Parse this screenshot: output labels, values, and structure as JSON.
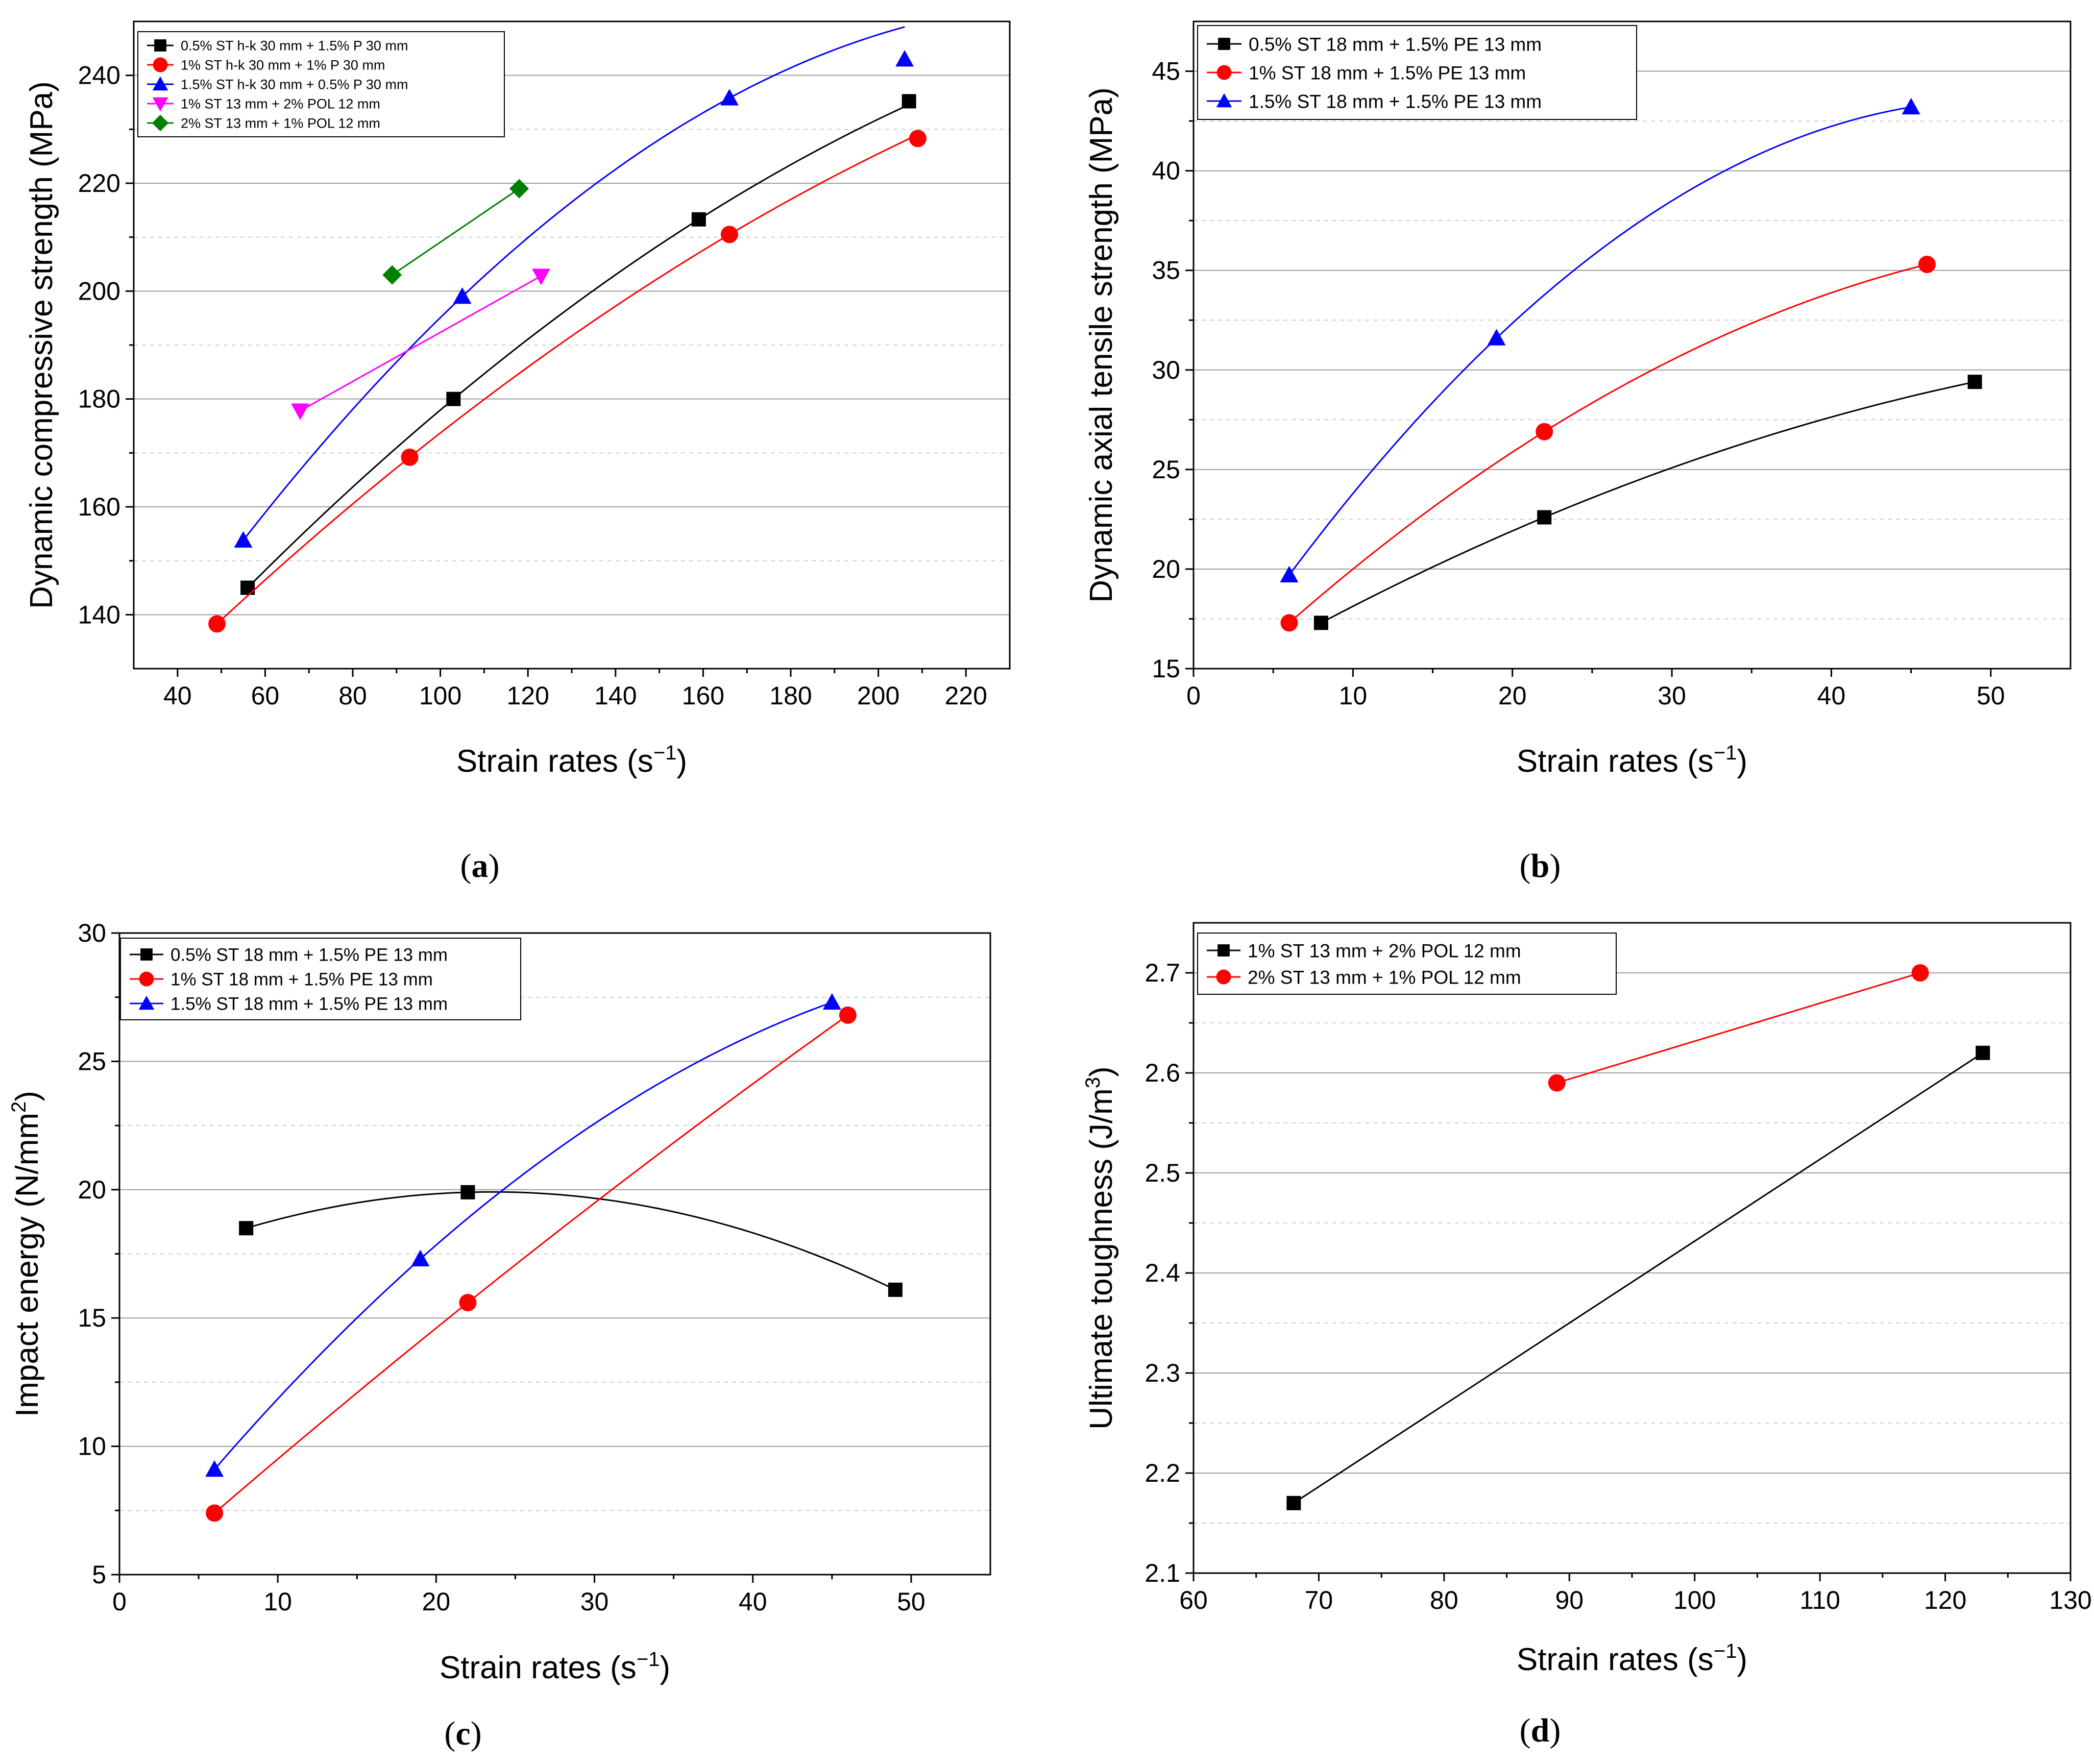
{
  "chart_data": [
    {
      "type": "scatter",
      "panel_label": "a",
      "xlabel": "Strain rates (s",
      "xlabel_sup": "−1",
      "xlabel_tail": ")",
      "ylabel": "Dynamic compressive strength (MPa)",
      "xlim": [
        30,
        230
      ],
      "ylim": [
        130,
        250
      ],
      "xticks": [
        40,
        60,
        80,
        100,
        120,
        140,
        160,
        180,
        200,
        220
      ],
      "yticks": [
        140,
        160,
        180,
        200,
        220,
        240
      ],
      "legend_position": "top-left",
      "series": [
        {
          "name": "0.5% ST h-k 30 mm + 1.5% P 30 mm",
          "color": "#000000",
          "marker": "square",
          "x": [
            56,
            103,
            159,
            207
          ],
          "y": [
            145,
            180,
            213.3,
            235.2
          ],
          "fit": "quadratic"
        },
        {
          "name": "1% ST h-k 30 mm + 1% P 30 mm",
          "color": "#ff0000",
          "marker": "circle",
          "x": [
            49,
            93,
            166,
            209
          ],
          "y": [
            138.3,
            169.2,
            210.5,
            228.3
          ],
          "fit": "quadratic"
        },
        {
          "name": "1.5% ST h-k 30 mm + 0.5% P 30 mm",
          "color": "#0000ff",
          "marker": "triangle-up",
          "x": [
            55,
            105,
            166,
            206
          ],
          "y": [
            153.8,
            199,
            235.8,
            243
          ],
          "fit": "quadratic"
        },
        {
          "name": "1% ST 13 mm + 2% POL 12 mm",
          "color": "#ff00ff",
          "marker": "triangle-down",
          "x": [
            68,
            123
          ],
          "y": [
            177.8,
            202.8
          ],
          "fit": "linear"
        },
        {
          "name": "2% ST 13 mm + 1% POL 12 mm",
          "color": "#008000",
          "marker": "diamond",
          "x": [
            89,
            118
          ],
          "y": [
            203,
            219
          ],
          "fit": "linear"
        }
      ]
    },
    {
      "type": "scatter",
      "panel_label": "b",
      "xlabel": "Strain rates (s",
      "xlabel_sup": "−1",
      "xlabel_tail": ")",
      "ylabel": "Dynamic axial tensile strength (MPa)",
      "xlim": [
        0,
        55
      ],
      "ylim": [
        15,
        47.5
      ],
      "xticks": [
        0,
        10,
        20,
        30,
        40,
        50
      ],
      "yticks": [
        15,
        20,
        25,
        30,
        35,
        40,
        45
      ],
      "legend_position": "top-left",
      "series": [
        {
          "name": "0.5% ST 18 mm + 1.5% PE 13 mm",
          "color": "#000000",
          "marker": "square",
          "x": [
            8,
            22,
            49
          ],
          "y": [
            17.3,
            22.6,
            29.4
          ],
          "fit": "quadratic"
        },
        {
          "name": "1% ST 18 mm + 1.5% PE 13 mm",
          "color": "#ff0000",
          "marker": "circle",
          "x": [
            6,
            22,
            46
          ],
          "y": [
            17.3,
            26.9,
            35.3
          ],
          "fit": "quadratic"
        },
        {
          "name": "1.5% ST 18 mm + 1.5% PE 13 mm",
          "color": "#0000ff",
          "marker": "triangle-up",
          "x": [
            6,
            19,
            45
          ],
          "y": [
            19.7,
            31.6,
            43.2
          ],
          "fit": "quadratic"
        }
      ]
    },
    {
      "type": "scatter",
      "panel_label": "c",
      "xlabel": "Strain rates (s",
      "xlabel_sup": "−1",
      "xlabel_tail": ")",
      "ylabel": "Impact energy (N/mm",
      "ylabel_sup": "2",
      "ylabel_tail": ")",
      "xlim": [
        0,
        55
      ],
      "ylim": [
        5,
        30
      ],
      "xticks": [
        0,
        10,
        20,
        30,
        40,
        50
      ],
      "yticks": [
        5,
        10,
        15,
        20,
        25,
        30
      ],
      "legend_position": "top-left",
      "series": [
        {
          "name": "0.5% ST 18 mm + 1.5% PE 13 mm",
          "color": "#000000",
          "marker": "square",
          "x": [
            8,
            22,
            49
          ],
          "y": [
            18.5,
            19.9,
            16.1
          ],
          "fit": "quadratic"
        },
        {
          "name": "1% ST 18 mm + 1.5% PE 13 mm",
          "color": "#ff0000",
          "marker": "circle",
          "x": [
            6,
            22,
            46
          ],
          "y": [
            7.4,
            15.6,
            26.8
          ],
          "fit": "quadratic"
        },
        {
          "name": "1.5% ST 18 mm + 1.5% PE 13 mm",
          "color": "#0000ff",
          "marker": "triangle-up",
          "x": [
            6,
            19,
            45
          ],
          "y": [
            9.1,
            17.3,
            27.3
          ],
          "fit": "quadratic"
        }
      ]
    },
    {
      "type": "scatter",
      "panel_label": "d",
      "xlabel": "Strain rates (s",
      "xlabel_sup": "−1",
      "xlabel_tail": ")",
      "ylabel": "Ultimate toughness (J/m",
      "ylabel_sup": "3",
      "ylabel_tail": ")",
      "xlim": [
        60,
        130
      ],
      "ylim": [
        2.1,
        2.75
      ],
      "xticks": [
        60,
        70,
        80,
        90,
        100,
        110,
        120,
        130
      ],
      "yticks": [
        2.1,
        2.2,
        2.3,
        2.4,
        2.5,
        2.6,
        2.7
      ],
      "tick_decimals": 1,
      "legend_position": "top-left",
      "series": [
        {
          "name": "1% ST 13 mm + 2% POL 12 mm",
          "color": "#000000",
          "marker": "square",
          "x": [
            68,
            123
          ],
          "y": [
            2.17,
            2.62
          ],
          "fit": "linear"
        },
        {
          "name": "2% ST 13 mm + 1% POL 12 mm",
          "color": "#ff0000",
          "marker": "circle",
          "x": [
            89,
            118
          ],
          "y": [
            2.59,
            2.7
          ],
          "fit": "linear"
        }
      ]
    }
  ]
}
